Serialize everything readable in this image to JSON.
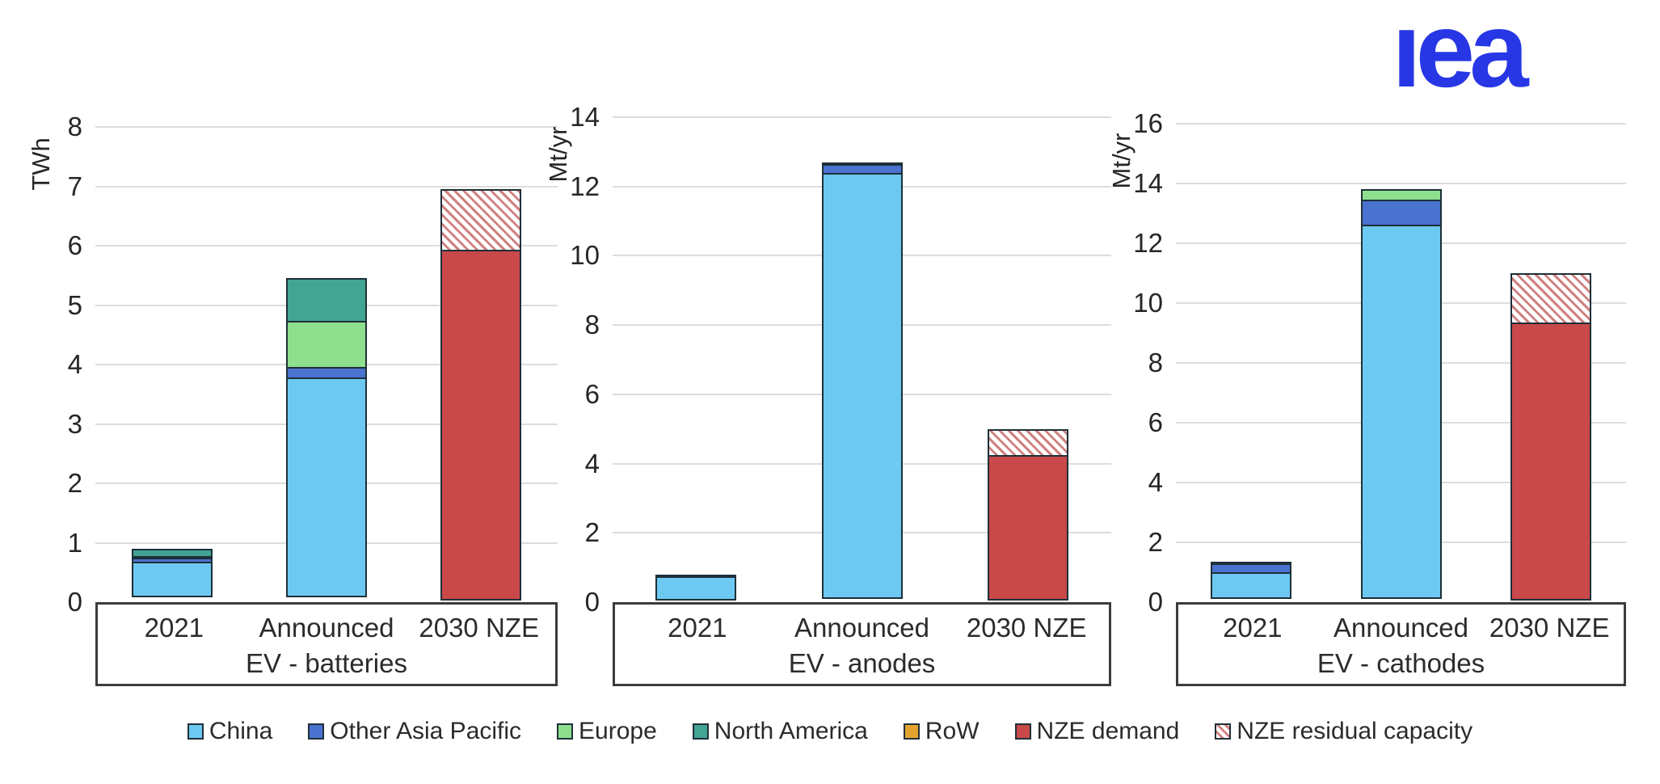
{
  "page": {
    "logo_text": "iea"
  },
  "colors": {
    "China": "#6ec9f2",
    "Other Asia Pacific": "#4a72cf",
    "Europe": "#8ddf8e",
    "North America": "#42a493",
    "RoW": "#e3a42f",
    "NZE demand": "#c9494a",
    "NZE residual capacity": "hatch"
  },
  "legend": {
    "position": "bottom",
    "items": [
      {
        "label": "China"
      },
      {
        "label": "Other Asia Pacific"
      },
      {
        "label": "Europe"
      },
      {
        "label": "North America"
      },
      {
        "label": "RoW"
      },
      {
        "label": "NZE demand"
      },
      {
        "label": "NZE residual capacity"
      }
    ]
  },
  "chart_data": [
    {
      "type": "bar",
      "stacked": true,
      "title": "EV - batteries",
      "ylabel": "TWh",
      "ylim": [
        0,
        8
      ],
      "ytick_step": 1,
      "grid": true,
      "categories": [
        "2021",
        "Announced",
        "2030 NZE"
      ],
      "bars": [
        {
          "category": "2021",
          "segments": [
            {
              "name": "China",
              "value": 0.6
            },
            {
              "name": "Other Asia Pacific",
              "value": 0.1
            },
            {
              "name": "Europe",
              "value": 0.05
            },
            {
              "name": "North America",
              "value": 0.15
            }
          ]
        },
        {
          "category": "Announced",
          "segments": [
            {
              "name": "China",
              "value": 3.7
            },
            {
              "name": "Other Asia Pacific",
              "value": 0.2
            },
            {
              "name": "Europe",
              "value": 0.8
            },
            {
              "name": "North America",
              "value": 0.75
            }
          ]
        },
        {
          "category": "2030 NZE",
          "segments": [
            {
              "name": "NZE demand",
              "value": 5.9
            },
            {
              "name": "NZE residual capacity",
              "value": 1.05
            }
          ]
        }
      ]
    },
    {
      "type": "bar",
      "stacked": true,
      "title": "EV - anodes",
      "ylabel": "Mt/yr",
      "ylim": [
        0,
        14
      ],
      "ytick_step": 2,
      "grid": true,
      "categories": [
        "2021",
        "Announced",
        "2030 NZE"
      ],
      "bars": [
        {
          "category": "2021",
          "segments": [
            {
              "name": "China",
              "value": 0.7
            },
            {
              "name": "Other Asia Pacific",
              "value": 0.1
            }
          ]
        },
        {
          "category": "Announced",
          "segments": [
            {
              "name": "China",
              "value": 12.3
            },
            {
              "name": "Other Asia Pacific",
              "value": 0.3
            },
            {
              "name": "Europe",
              "value": 0.1
            }
          ]
        },
        {
          "category": "2030 NZE",
          "segments": [
            {
              "name": "NZE demand",
              "value": 4.2
            },
            {
              "name": "NZE residual capacity",
              "value": 0.8
            }
          ]
        }
      ]
    },
    {
      "type": "bar",
      "stacked": true,
      "title": "EV - cathodes",
      "ylabel": "Mt/yr",
      "ylim": [
        0,
        16
      ],
      "ytick_step": 2,
      "grid": true,
      "categories": [
        "2021",
        "Announced",
        "2030 NZE"
      ],
      "bars": [
        {
          "category": "2021",
          "segments": [
            {
              "name": "China",
              "value": 0.9
            },
            {
              "name": "Other Asia Pacific",
              "value": 0.35
            },
            {
              "name": "Europe",
              "value": 0.1
            }
          ]
        },
        {
          "category": "Announced",
          "segments": [
            {
              "name": "China",
              "value": 12.5
            },
            {
              "name": "Other Asia Pacific",
              "value": 0.9
            },
            {
              "name": "Europe",
              "value": 0.4
            }
          ]
        },
        {
          "category": "2030 NZE",
          "segments": [
            {
              "name": "NZE demand",
              "value": 9.3
            },
            {
              "name": "NZE residual capacity",
              "value": 1.7
            }
          ]
        }
      ]
    }
  ]
}
